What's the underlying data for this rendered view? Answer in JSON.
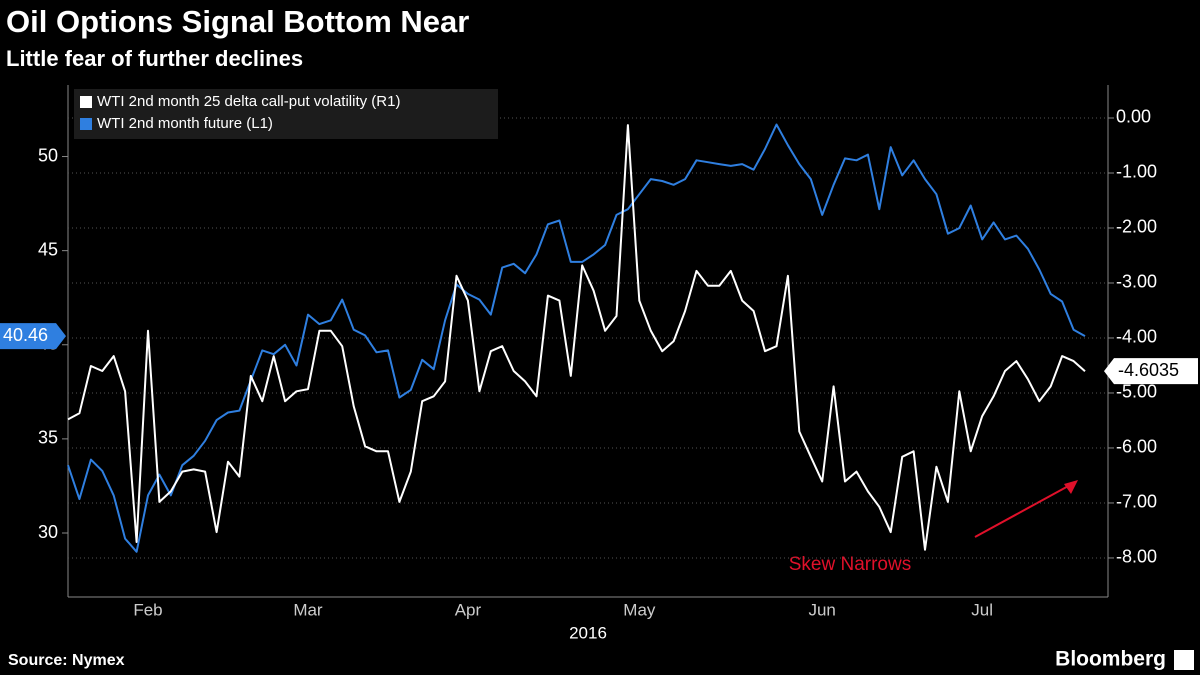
{
  "chart_data": {
    "type": "line",
    "title": "Oil Options Signal Bottom Near",
    "subtitle": "Little fear of further declines",
    "x_label": "2016",
    "source": "Source: Nymex",
    "brand": "Bloomberg",
    "annotation": "Skew Narrows",
    "categories": [
      null,
      null,
      null,
      null,
      null,
      null,
      null,
      "Feb",
      null,
      null,
      null,
      null,
      null,
      null,
      null,
      null,
      null,
      null,
      null,
      null,
      null,
      "Mar",
      null,
      null,
      null,
      null,
      null,
      null,
      null,
      null,
      null,
      null,
      null,
      null,
      null,
      "Apr",
      null,
      null,
      null,
      null,
      null,
      null,
      null,
      null,
      null,
      null,
      null,
      null,
      null,
      null,
      "May",
      null,
      null,
      null,
      null,
      null,
      null,
      null,
      null,
      null,
      null,
      null,
      null,
      null,
      null,
      null,
      "Jun",
      null,
      null,
      null,
      null,
      null,
      null,
      null,
      null,
      null,
      null,
      null,
      null,
      null,
      "Jul",
      null,
      null,
      null,
      null,
      null,
      null,
      null,
      null,
      null
    ],
    "series": [
      {
        "name": "WTI 2nd month 25 delta call-put volatility (R1)",
        "color": "#ffffff",
        "axis": "y2",
        "values": [
          -5.48,
          -5.37,
          -4.51,
          -4.6,
          -4.33,
          -4.97,
          -7.71,
          -3.87,
          -6.98,
          -6.79,
          -6.43,
          -6.39,
          -6.43,
          -7.53,
          -6.25,
          -6.52,
          -4.69,
          -5.15,
          -4.33,
          -5.15,
          -4.97,
          -4.93,
          -3.87,
          -3.87,
          -4.15,
          -5.24,
          -5.97,
          -6.06,
          -6.06,
          -6.98,
          -6.43,
          -5.15,
          -5.06,
          -4.79,
          -2.87,
          -3.32,
          -4.97,
          -4.24,
          -4.15,
          -4.6,
          -4.79,
          -5.06,
          -3.23,
          -3.32,
          -4.69,
          -2.68,
          -3.14,
          -3.87,
          -3.6,
          -0.13,
          -3.32,
          -3.87,
          -4.24,
          -4.06,
          -3.51,
          -2.78,
          -3.05,
          -3.05,
          -2.78,
          -3.32,
          -3.51,
          -4.24,
          -4.15,
          -2.87,
          -5.7,
          -6.16,
          -6.61,
          -4.88,
          -6.61,
          -6.43,
          -6.79,
          -7.07,
          -7.53,
          -6.16,
          -6.06,
          -7.85,
          -6.34,
          -6.98,
          -4.97,
          -6.06,
          -5.42,
          -5.06,
          -4.6,
          -4.42,
          -4.75,
          -5.15,
          -4.88,
          -4.33,
          -4.42,
          -4.6035
        ]
      },
      {
        "name": "WTI 2nd month future (L1)",
        "color": "#2f7fe0",
        "values": [
          33.6,
          31.8,
          33.9,
          33.3,
          32.0,
          29.7,
          29.0,
          32.0,
          33.1,
          32.0,
          33.6,
          34.1,
          34.9,
          36.0,
          36.4,
          36.5,
          38.1,
          39.7,
          39.5,
          40.0,
          38.9,
          41.6,
          41.1,
          41.3,
          42.4,
          40.8,
          40.5,
          39.6,
          39.7,
          37.2,
          37.6,
          39.2,
          38.7,
          41.3,
          43.2,
          42.7,
          42.4,
          41.6,
          44.1,
          44.3,
          43.8,
          44.8,
          46.4,
          46.6,
          44.4,
          44.4,
          44.8,
          45.3,
          46.9,
          47.2,
          48.0,
          48.8,
          48.7,
          48.5,
          48.8,
          49.8,
          49.7,
          49.6,
          49.5,
          49.6,
          49.3,
          50.4,
          51.7,
          50.6,
          49.6,
          48.8,
          46.9,
          48.5,
          49.9,
          49.8,
          50.1,
          47.2,
          50.5,
          49.0,
          49.8,
          48.8,
          48.0,
          45.9,
          46.2,
          47.4,
          45.6,
          46.5,
          45.6,
          45.8,
          45.1,
          44.0,
          42.7,
          42.3,
          40.8,
          40.46
        ]
      }
    ],
    "ylim": [
      26.6,
      53.8
    ],
    "yticks": [
      30,
      35,
      40,
      45,
      50
    ],
    "y2lim": [
      -8.71,
      0.6
    ],
    "y2ticks": [
      {
        "value": 0,
        "label": "0.00"
      },
      {
        "value": -1,
        "label": "-1.00"
      },
      {
        "value": -2,
        "label": "-2.00"
      },
      {
        "value": -3,
        "label": "-3.00"
      },
      {
        "value": -4,
        "label": "-4.00"
      },
      {
        "value": -5,
        "label": "-5.00"
      },
      {
        "value": -6,
        "label": "-6.00"
      },
      {
        "value": -7,
        "label": "-7.00"
      },
      {
        "value": -8,
        "label": "-8.00"
      }
    ],
    "grid": true,
    "legend": "top-left"
  }
}
